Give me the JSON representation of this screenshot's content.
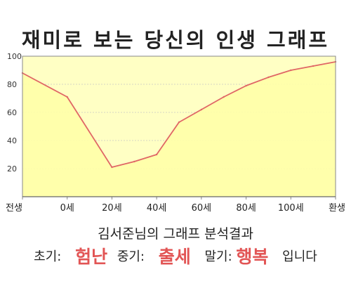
{
  "chart_data": {
    "type": "area",
    "title": "재미로 보는 당신의 인생 그래프",
    "xlabel": "",
    "ylabel": "",
    "categories": [
      "전생",
      "0세",
      "20세",
      "40세",
      "60세",
      "80세",
      "100세",
      "환생"
    ],
    "x": [
      -10,
      0,
      10,
      15,
      20,
      25,
      30,
      35,
      40,
      45,
      50,
      55,
      60
    ],
    "y": [
      88,
      71,
      21,
      25,
      30,
      53,
      62,
      71,
      79,
      85,
      90,
      93,
      96
    ],
    "ylim": [
      0,
      100
    ],
    "yticks": [
      "100",
      "80",
      "60",
      "40",
      "20"
    ],
    "grid": true,
    "colors": {
      "fill": "#ffffc4",
      "line": "#e06666",
      "frame": "#888888"
    }
  },
  "result": {
    "title": "김서준님의 그래프 분석결과",
    "early_label": "초기:",
    "early_value": "험난",
    "mid_label": "중기:",
    "mid_value": "출세",
    "late_label": "말기:",
    "late_value": "행복",
    "suffix": "입니다"
  }
}
